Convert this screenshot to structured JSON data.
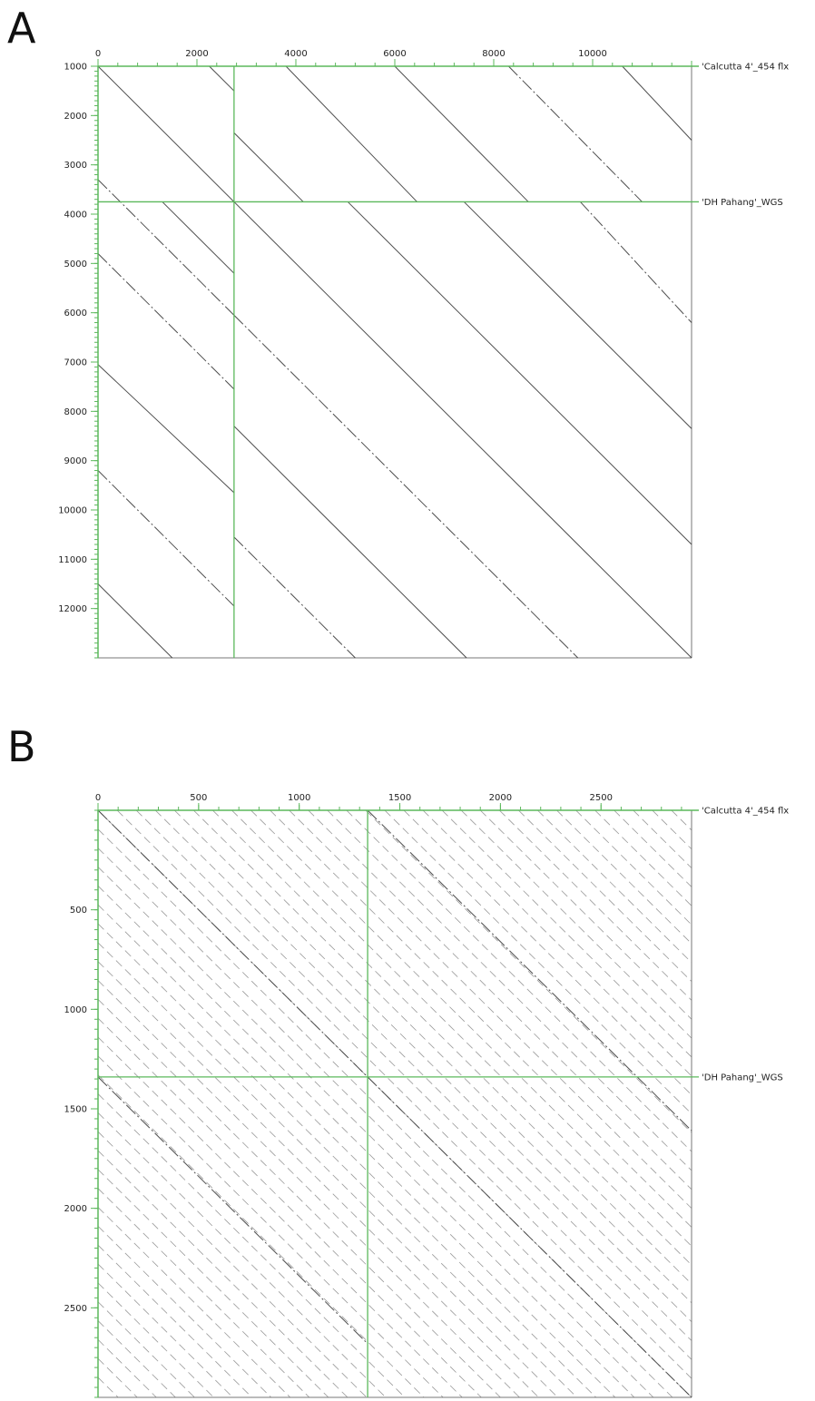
{
  "chart_data": [
    {
      "type": "scatter",
      "panel_label": "A",
      "x_sequence_label": "'Calcutta 4'_454 flx",
      "y_sequence_label": "'DH Pahang'_WGS",
      "x_ticks": [
        0,
        2000,
        4000,
        6000,
        8000,
        10000
      ],
      "y_ticks": [
        1000,
        2000,
        3000,
        4000,
        5000,
        6000,
        7000,
        8000,
        9000,
        10000,
        11000,
        12000
      ],
      "xlim": [
        0,
        12000
      ],
      "ylim": [
        1000,
        13000
      ],
      "x_boundary": 2750,
      "y_boundary": 3750,
      "grid": false,
      "dot_segments": [
        {
          "x": [
            0,
            2750
          ],
          "y": [
            1000,
            3750
          ]
        },
        {
          "x": [
            2750,
            12000
          ],
          "y": [
            3750,
            13000
          ]
        },
        {
          "x": [
            2750,
            4150
          ],
          "y": [
            2350,
            3750
          ]
        },
        {
          "x": [
            1300,
            2750
          ],
          "y": [
            3750,
            5200
          ]
        },
        {
          "x": [
            0,
            2750
          ],
          "y": [
            7050,
            9650
          ]
        },
        {
          "x": [
            2750,
            7450
          ],
          "y": [
            8300,
            13000
          ]
        },
        {
          "x": [
            6000,
            8700
          ],
          "y": [
            1000,
            3750
          ]
        },
        {
          "x": [
            7400,
            12000
          ],
          "y": [
            3750,
            8350
          ]
        },
        {
          "x": [
            10600,
            12000
          ],
          "y": [
            1000,
            2500
          ]
        },
        {
          "x": [
            0,
            1500
          ],
          "y": [
            11500,
            13000
          ]
        },
        {
          "x": [
            2250,
            2750
          ],
          "y": [
            1000,
            1500
          ]
        },
        {
          "x": [
            3800,
            6450
          ],
          "y": [
            1000,
            3750
          ]
        },
        {
          "x": [
            5050,
            12000
          ],
          "y": [
            3750,
            10700
          ]
        },
        {
          "x": [
            8300,
            11000
          ],
          "y": [
            1000,
            3750
          ]
        },
        {
          "x": [
            9750,
            12000
          ],
          "y": [
            3750,
            6200
          ]
        },
        {
          "x": [
            0,
            2750
          ],
          "y": [
            3300,
            6050
          ]
        },
        {
          "x": [
            0,
            2750
          ],
          "y": [
            4800,
            7550
          ]
        },
        {
          "x": [
            0,
            2750
          ],
          "y": [
            9200,
            11950
          ]
        },
        {
          "x": [
            2750,
            9700
          ],
          "y": [
            6050,
            13000
          ]
        },
        {
          "x": [
            2750,
            5200
          ],
          "y": [
            10550,
            13000
          ]
        }
      ]
    },
    {
      "type": "scatter",
      "panel_label": "B",
      "x_sequence_label": "'Calcutta 4'_454 flx",
      "y_sequence_label": "'DH Pahang'_WGS",
      "x_ticks": [
        0,
        500,
        1000,
        1500,
        2000,
        2500
      ],
      "y_ticks": [
        500,
        1000,
        1500,
        2000,
        2500
      ],
      "xlim": [
        0,
        2950
      ],
      "ylim": [
        0,
        2950
      ],
      "x_boundary": 1340,
      "y_boundary": 1340,
      "grid": false,
      "dot_segments": [
        {
          "x": [
            0,
            1340
          ],
          "y": [
            0,
            1340
          ]
        },
        {
          "x": [
            1340,
            2950
          ],
          "y": [
            1340,
            2950
          ]
        },
        {
          "x": [
            1340,
            2950
          ],
          "y": [
            0,
            1610
          ]
        },
        {
          "x": [
            0,
            1340
          ],
          "y": [
            1340,
            2680
          ]
        }
      ],
      "repeat_period": 95
    }
  ]
}
